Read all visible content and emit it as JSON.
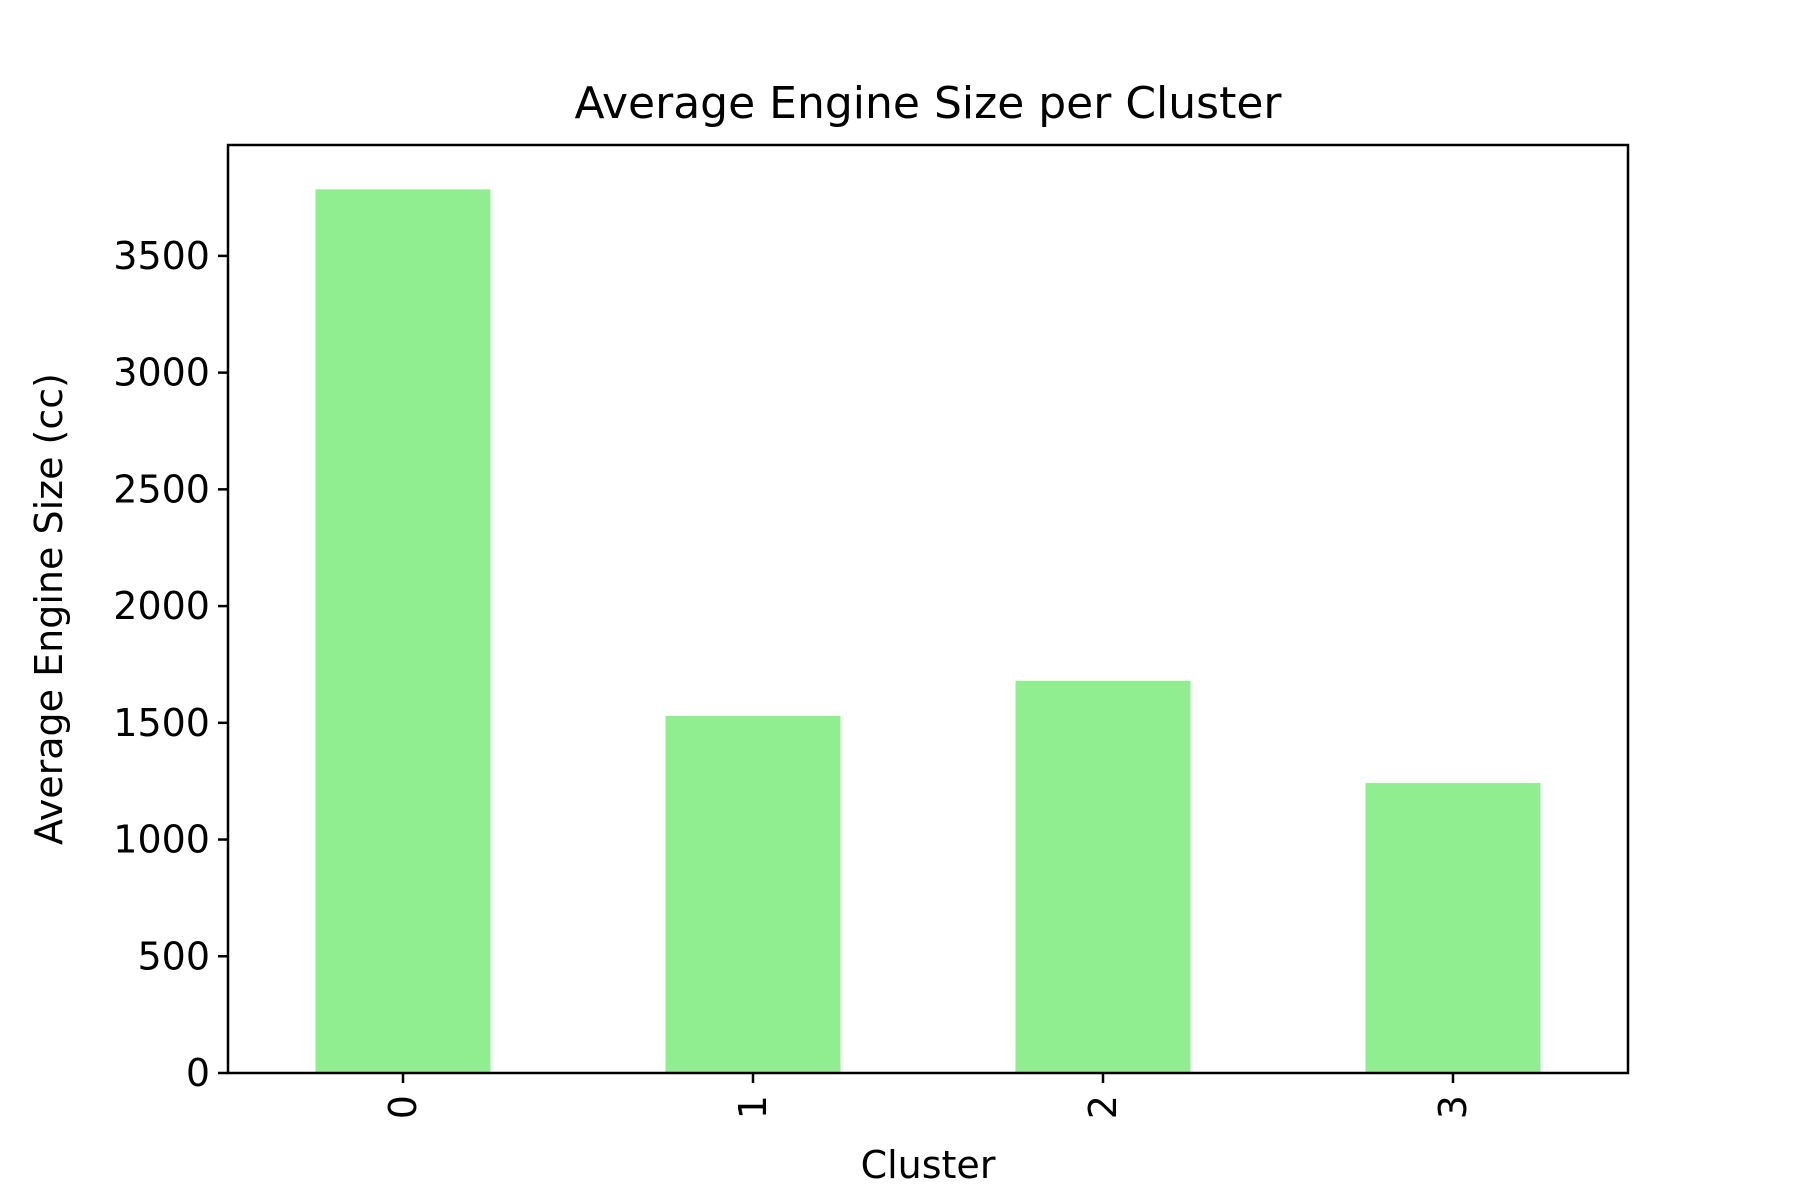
{
  "chart_data": {
    "type": "bar",
    "title": "Average Engine Size per Cluster",
    "xlabel": "Cluster",
    "ylabel": "Average Engine Size (cc)",
    "categories": [
      "0",
      "1",
      "2",
      "3"
    ],
    "values": [
      3785,
      1530,
      1680,
      1242
    ],
    "ylim": [
      0,
      3975
    ],
    "yticks": [
      0,
      500,
      1000,
      1500,
      2000,
      2500,
      3000,
      3500
    ],
    "ytick_labels": [
      "0",
      "500",
      "1000",
      "1500",
      "2000",
      "2500",
      "3000",
      "3500"
    ],
    "xtick_rotation": "vertical",
    "bar_color": "#90ee90",
    "grid": false,
    "legend": "none"
  }
}
